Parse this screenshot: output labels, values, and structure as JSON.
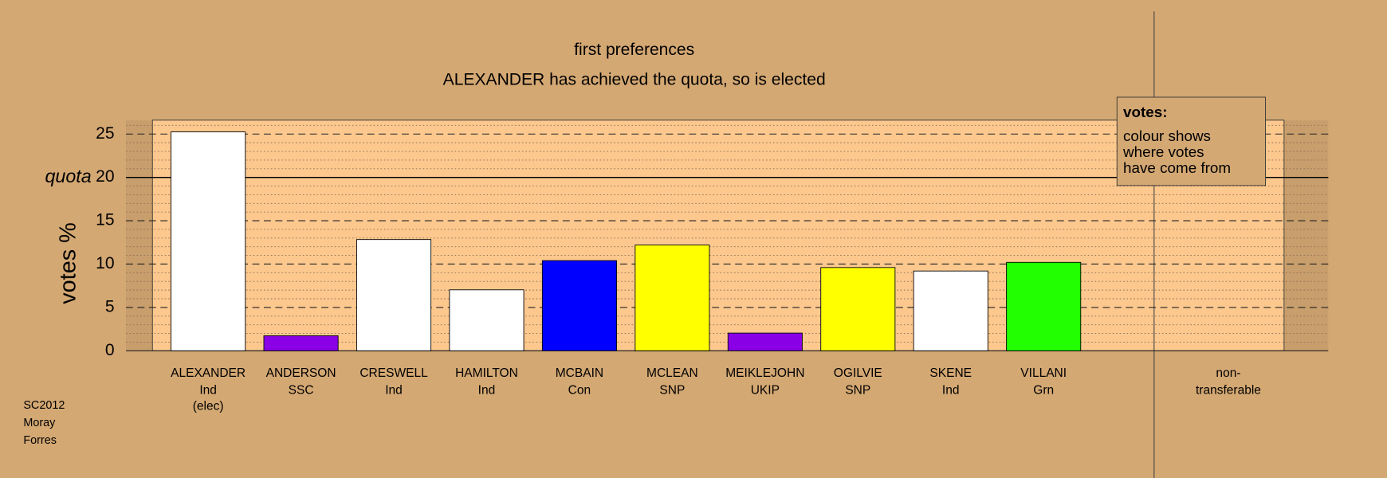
{
  "chart_data": {
    "type": "bar",
    "title": "first preferences",
    "subtitle": "ALEXANDER has achieved the quota, so is elected",
    "y_label": "votes %",
    "categories": [
      "ALEXANDER",
      "ANDERSON",
      "CRESWELL",
      "HAMILTON",
      "MCBAIN",
      "MCLEAN",
      "MEIKLEJOHN",
      "OGILVIE",
      "SKENE",
      "VILLANI"
    ],
    "parties": [
      "Ind",
      "SSC",
      "Ind",
      "Ind",
      "Con",
      "SNP",
      "UKIP",
      "SNP",
      "Ind",
      "Grn"
    ],
    "notes": [
      "(elec)",
      null,
      null,
      null,
      null,
      null,
      null,
      null,
      null,
      null
    ],
    "values": [
      25.25,
      1.73,
      12.83,
      7.03,
      10.4,
      12.2,
      2.04,
      9.6,
      9.2,
      10.2
    ],
    "colors": [
      "#ffffff",
      "#8a00e6",
      "#ffffff",
      "#ffffff",
      "#0000ff",
      "#ffff00",
      "#8a00e6",
      "#ffff00",
      "#ffffff",
      "#22ff00"
    ],
    "extra_column": [
      "non-",
      "transferable"
    ],
    "ylim": [
      0,
      26.6
    ],
    "yticks": [
      0,
      5,
      10,
      15,
      20,
      25
    ],
    "minor_yticks": [
      1,
      2,
      3,
      4,
      6,
      7,
      8,
      9,
      11,
      12,
      13,
      14,
      16,
      17,
      18,
      19,
      21,
      22,
      23,
      24,
      26
    ],
    "quota": {
      "value": 20,
      "label": "quota"
    },
    "legend": {
      "title": "votes:",
      "lines": [
        "colour shows",
        "where votes",
        "have come from"
      ]
    },
    "footer": [
      "SC2012",
      "Moray",
      "Forres"
    ]
  }
}
